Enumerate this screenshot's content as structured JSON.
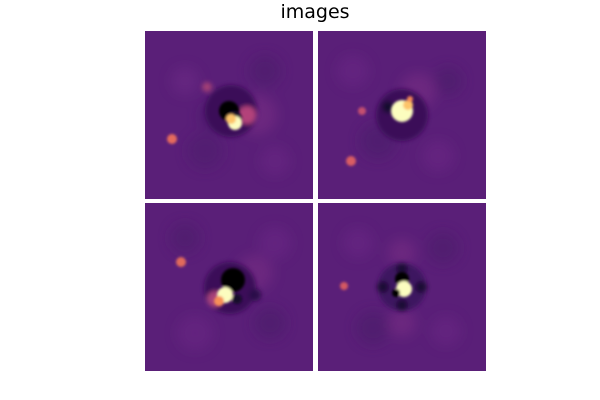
{
  "figure": {
    "title": "images"
  },
  "colormap": {
    "name": "magma",
    "background": "#5a1f78",
    "low": "#000004",
    "mid": "#b73779",
    "high": "#fcfdbf"
  },
  "panels": [
    {
      "id": 1,
      "row": 1,
      "col": 1
    },
    {
      "id": 2,
      "row": 1,
      "col": 2
    },
    {
      "id": 3,
      "row": 2,
      "col": 1
    },
    {
      "id": 4,
      "row": 2,
      "col": 2
    }
  ]
}
